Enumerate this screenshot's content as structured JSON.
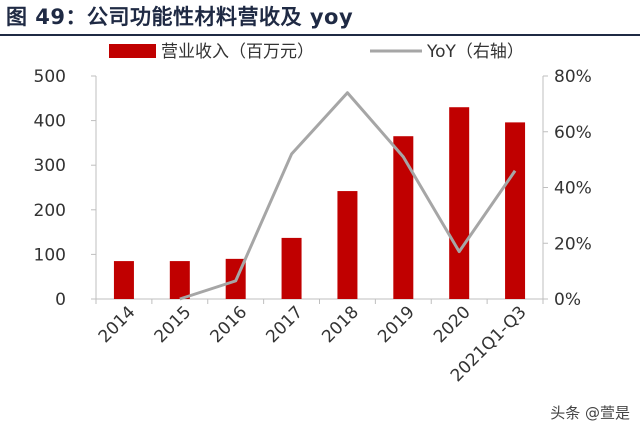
{
  "figure": {
    "title": "图 49：公司功能性材料营收及 yoy",
    "watermark": "头条 @萱是"
  },
  "colors": {
    "bar": "#c00000",
    "line": "#a6a6a6",
    "axis": "#bfbfbf",
    "title": "#1f2a44",
    "text": "#333333"
  },
  "chart_data": {
    "type": "bar+line",
    "categories": [
      "2014",
      "2015",
      "2016",
      "2017",
      "2018",
      "2019",
      "2020",
      "2021Q1-Q3"
    ],
    "series": [
      {
        "name": "营业收入（百万元）",
        "type": "bar",
        "axis": "left",
        "values": [
          85,
          85,
          90,
          137,
          242,
          365,
          430,
          396
        ]
      },
      {
        "name": "YoY（右轴）",
        "type": "line",
        "axis": "right",
        "values": [
          null,
          0,
          6.5,
          52,
          74,
          51,
          17,
          46
        ]
      }
    ],
    "y_left": {
      "min": 0,
      "max": 500,
      "ticks": [
        "0",
        "100",
        "200",
        "300",
        "400",
        "500"
      ]
    },
    "y_right": {
      "min": 0,
      "max": 80,
      "ticks": [
        "0%",
        "20%",
        "40%",
        "60%",
        "80%"
      ]
    },
    "legend_position": "top",
    "grid": false
  }
}
